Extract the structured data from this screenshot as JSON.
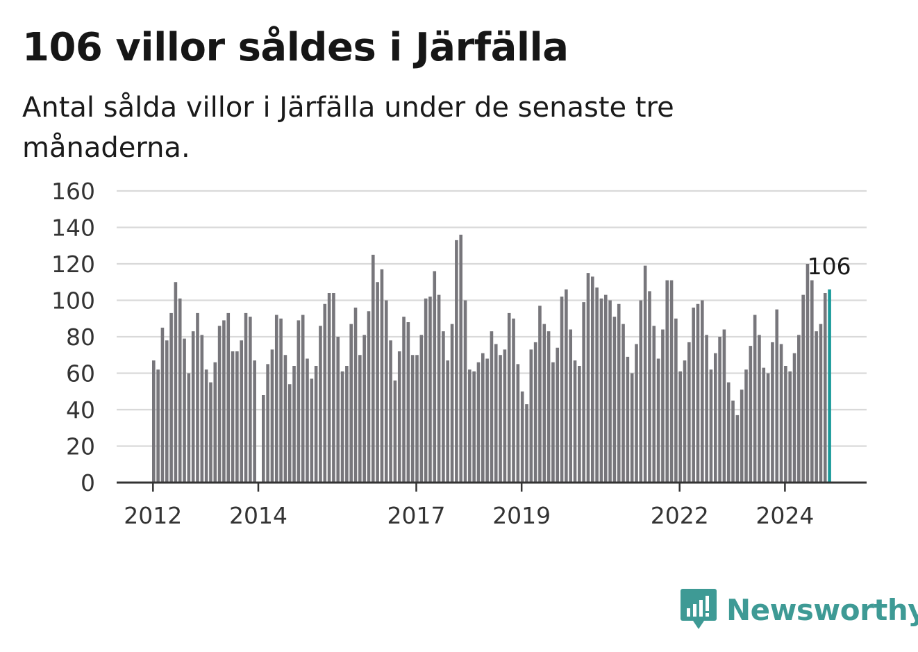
{
  "header": {
    "title": "106 villor såldes i Järfälla",
    "subtitle": "Antal sålda villor i Järfälla under de senaste tre månaderna."
  },
  "logo": {
    "text": "Newsworthy",
    "icon": "newsworthy-bar-chart-icon"
  },
  "colors": {
    "bar": "#77767b",
    "highlight": "#1a9a9a",
    "grid": "#d9d9d9",
    "axis": "#333333",
    "logo": "#3e9a95"
  },
  "chart_data": {
    "type": "bar",
    "title": "106 villor såldes i Järfälla",
    "subtitle": "Antal sålda villor i Järfälla under de senaste tre månaderna.",
    "xlabel": "",
    "ylabel": "",
    "ylim": [
      0,
      160
    ],
    "yticks": [
      "0",
      "20",
      "40",
      "60",
      "80",
      "100",
      "120",
      "140",
      "160"
    ],
    "xticks": [
      {
        "label": "2012",
        "month": "2012-01"
      },
      {
        "label": "2014",
        "month": "2014-01"
      },
      {
        "label": "2017",
        "month": "2017-01"
      },
      {
        "label": "2019",
        "month": "2019-01"
      },
      {
        "label": "2022",
        "month": "2022-01"
      },
      {
        "label": "2024",
        "month": "2024-01"
      }
    ],
    "grid": true,
    "start_month": "2012-01",
    "values": [
      67,
      62,
      85,
      78,
      93,
      110,
      101,
      79,
      60,
      83,
      93,
      81,
      62,
      55,
      66,
      86,
      89,
      93,
      72,
      72,
      78,
      93,
      91,
      67,
      null,
      48,
      65,
      73,
      92,
      90,
      70,
      54,
      64,
      89,
      92,
      68,
      57,
      64,
      86,
      98,
      104,
      104,
      80,
      61,
      64,
      87,
      96,
      70,
      81,
      94,
      125,
      110,
      117,
      100,
      78,
      56,
      72,
      91,
      88,
      70,
      70,
      81,
      101,
      102,
      116,
      103,
      83,
      67,
      87,
      133,
      136,
      100,
      62,
      61,
      66,
      71,
      68,
      83,
      76,
      70,
      73,
      93,
      90,
      65,
      50,
      43,
      73,
      77,
      97,
      87,
      83,
      66,
      74,
      102,
      106,
      84,
      67,
      64,
      99,
      115,
      113,
      107,
      101,
      103,
      100,
      91,
      98,
      87,
      69,
      60,
      76,
      100,
      119,
      105,
      86,
      68,
      84,
      111,
      111,
      90,
      61,
      67,
      77,
      96,
      98,
      100,
      81,
      62,
      71,
      80,
      84,
      55,
      45,
      37,
      51,
      62,
      75,
      92,
      81,
      63,
      60,
      77,
      95,
      76,
      64,
      61,
      71,
      81,
      103,
      120,
      111,
      83,
      87,
      104,
      106
    ],
    "highlight": {
      "month": "2024-11",
      "value": 106,
      "label": "106"
    }
  }
}
